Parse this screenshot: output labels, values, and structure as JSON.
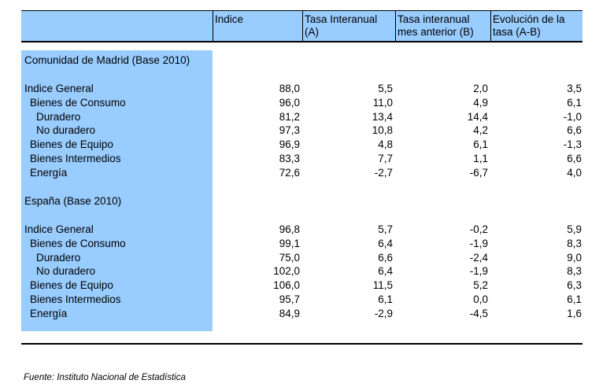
{
  "columns": [
    "Indice",
    "Tasa Interanual (A)",
    "Tasa interanual mes anterior (B)",
    "Evolución de la tasa (A-B)"
  ],
  "sections": [
    {
      "title": "Comunidad de Madrid (Base 2010)",
      "rows": [
        {
          "label": "Indice General",
          "level": 0,
          "values": [
            "88,0",
            "5,5",
            "2,0",
            "3,5"
          ]
        },
        {
          "label": "Bienes de Consumo",
          "level": 1,
          "values": [
            "96,0",
            "11,0",
            "4,9",
            "6,1"
          ]
        },
        {
          "label": "Duradero",
          "level": 2,
          "values": [
            "81,2",
            "13,4",
            "14,4",
            "-1,0"
          ]
        },
        {
          "label": "No duradero",
          "level": 2,
          "values": [
            "97,3",
            "10,8",
            "4,2",
            "6,6"
          ]
        },
        {
          "label": "Bienes de Equipo",
          "level": 1,
          "values": [
            "96,9",
            "4,8",
            "6,1",
            "-1,3"
          ]
        },
        {
          "label": "Bienes Intermedios",
          "level": 1,
          "values": [
            "83,3",
            "7,7",
            "1,1",
            "6,6"
          ]
        },
        {
          "label": "Energía",
          "level": 1,
          "values": [
            "72,6",
            "-2,7",
            "-6,7",
            "4,0"
          ]
        }
      ]
    },
    {
      "title": "España (Base 2010)",
      "rows": [
        {
          "label": "Indice General",
          "level": 0,
          "values": [
            "96,8",
            "5,7",
            "-0,2",
            "5,9"
          ]
        },
        {
          "label": "Bienes de Consumo",
          "level": 1,
          "values": [
            "99,1",
            "6,4",
            "-1,9",
            "8,3"
          ]
        },
        {
          "label": "Duradero",
          "level": 2,
          "values": [
            "75,0",
            "6,6",
            "-2,4",
            "9,0"
          ]
        },
        {
          "label": "No duradero",
          "level": 2,
          "values": [
            "102,0",
            "6,4",
            "-1,9",
            "8,3"
          ]
        },
        {
          "label": "Bienes de Equipo",
          "level": 1,
          "values": [
            "106,0",
            "11,5",
            "5,2",
            "6,3"
          ]
        },
        {
          "label": "Bienes Intermedios",
          "level": 1,
          "values": [
            "95,7",
            "6,1",
            "0,0",
            "6,1"
          ]
        },
        {
          "label": "Energía",
          "level": 1,
          "values": [
            "84,9",
            "-2,9",
            "-4,5",
            "1,6"
          ]
        }
      ]
    }
  ],
  "source": "Fuente: Instituto Nacional de Estadística"
}
